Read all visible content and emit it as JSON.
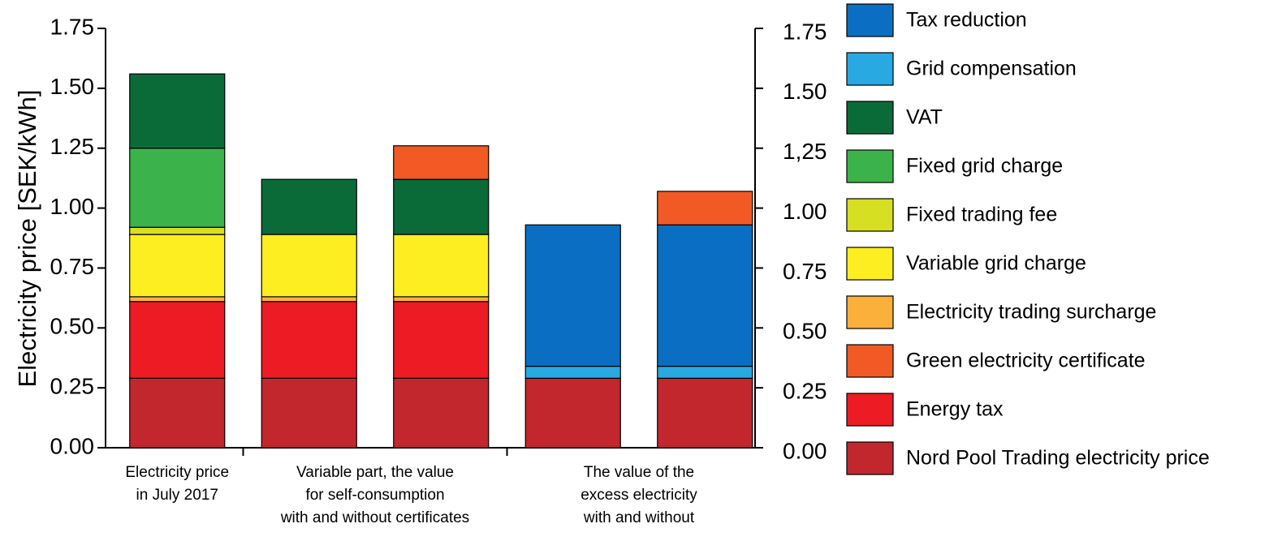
{
  "chart_data": {
    "type": "stacked_bar",
    "ylabel": "Electricity price [SEK/kWh]",
    "categories": [
      [
        "Electricity price",
        "in July 2017"
      ],
      [
        "Variable part, the value",
        "for self-consumption",
        "with and without certificates"
      ],
      null,
      [
        "The value of the",
        "excess electricity",
        "with and without"
      ],
      null
    ],
    "ylim": [
      0,
      1.75
    ],
    "yticks": [
      {
        "value": 0,
        "label": "0.00"
      },
      0.25,
      {
        "value": 0.5,
        "label": "0.50"
      },
      0.75,
      {
        "value": 1,
        "label": "1.00"
      },
      1.25,
      {
        "value": 1.5,
        "label": "1.50"
      },
      1.75
    ],
    "y2lim": [
      0,
      1.75
    ],
    "y2ticks": [
      {
        "value": 0,
        "label": "0.00"
      },
      0.25,
      {
        "value": 0.5,
        "label": "0.50"
      },
      0.75,
      {
        "value": 1,
        "label": "1.00"
      },
      {
        "value": 1.25,
        "label": "1,25"
      },
      {
        "value": 1.5,
        "label": "1.50"
      },
      1.75
    ],
    "series": [
      {
        "name": "Nord Pool Trading electricity price",
        "color": "#c1272d",
        "values": [
          0.29,
          0.29,
          0.29,
          0.29,
          0.29
        ]
      },
      {
        "name": "Energy tax",
        "color": "#ed1c24",
        "values": [
          0.32,
          0.32,
          0.32,
          null,
          null
        ]
      },
      {
        "name": "Electricity trading surcharge",
        "color": "#fbb03b",
        "values": [
          0.02,
          0.02,
          0.02,
          null,
          null
        ]
      },
      {
        "name": "Variable grid charge",
        "color": "#fcee21",
        "values": [
          0.26,
          0.26,
          0.26,
          null,
          null
        ]
      },
      {
        "name": "Fixed trading fee",
        "color": "#d7df23",
        "values": [
          0.03,
          null,
          null,
          null,
          null
        ]
      },
      {
        "name": "Fixed grid charge",
        "color": "#3cb34a",
        "values": [
          0.33,
          null,
          null,
          null,
          null
        ]
      },
      {
        "name": "VAT",
        "color": "#0b6b38",
        "values": [
          0.31,
          0.23,
          0.23,
          null,
          null
        ]
      },
      {
        "name": "Grid compensation",
        "color": "#29a9e1",
        "values": [
          null,
          null,
          null,
          0.05,
          0.05
        ]
      },
      {
        "name": "Tax reduction",
        "color": "#0a6fc2",
        "values": [
          null,
          null,
          null,
          0.59,
          0.59
        ]
      },
      {
        "name": "Green electricity certificate",
        "color": "#f15a24",
        "values": [
          null,
          null,
          0.14,
          null,
          0.14
        ]
      }
    ],
    "legend_order": [
      8,
      7,
      6,
      5,
      4,
      3,
      2,
      9,
      1,
      0
    ]
  }
}
